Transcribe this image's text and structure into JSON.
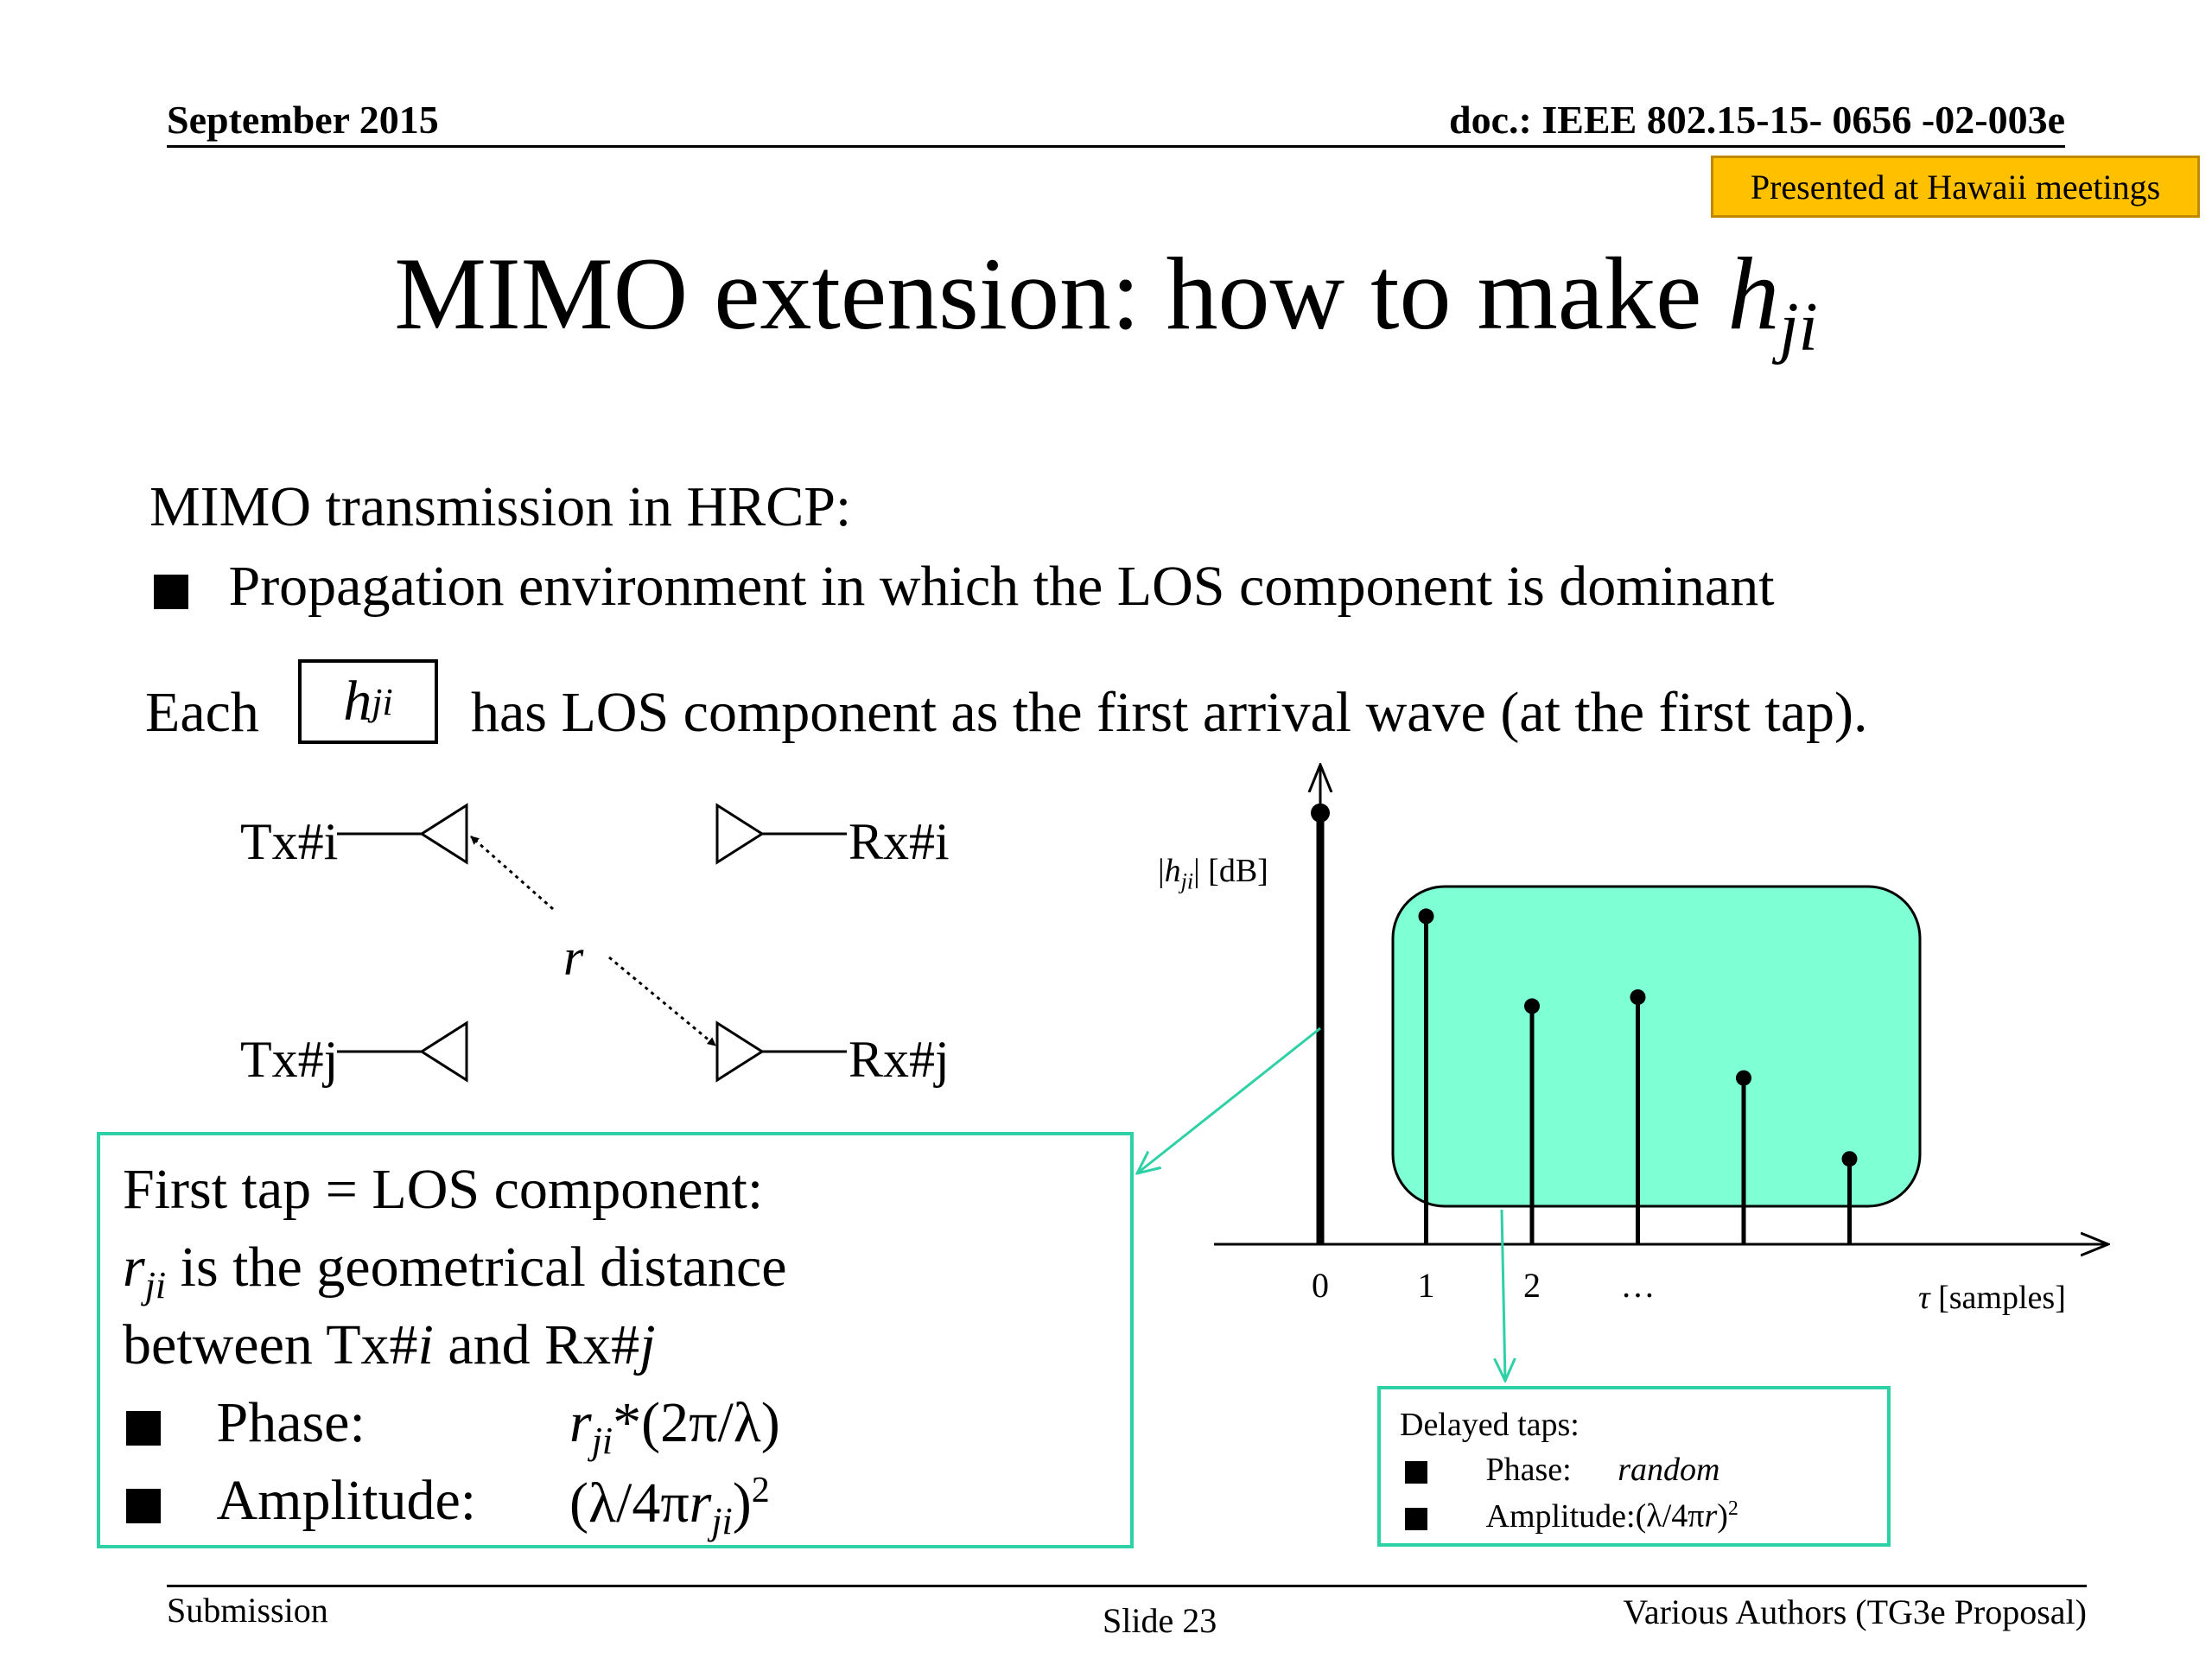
{
  "header": {
    "date": "September 2015",
    "doc": "doc.: IEEE 802.15-15- 0656 -02-003e"
  },
  "badge": "Presented at Hawaii meetings",
  "title": {
    "main": "MIMO extension: how to make ",
    "var": "h",
    "sub": "ji"
  },
  "intro": {
    "heading": "MIMO transmission in HRCP:",
    "bullet": "Propagation environment in which the LOS component is dominant",
    "each": "Each",
    "h_var": "h",
    "h_sub": "ji",
    "rest": "has LOS component as the first arrival wave (at the first tap)."
  },
  "antennas": {
    "tx_i": "Tx#i",
    "tx_j": "Tx#j",
    "rx_i": "Rx#i",
    "rx_j": "Rx#j",
    "r": "r"
  },
  "los_box": {
    "line1": "First tap = LOS component:",
    "line2_var": "r",
    "line2_sub": "ji",
    "line2_rest": " is the geometrical distance",
    "line3_a": "between Tx#",
    "line3_i": "i",
    "line3_b": " and Rx#",
    "line3_j": "j",
    "phase_label": "Phase:",
    "phase_var": "r",
    "phase_sub": "ji",
    "phase_rest": "*(2π/λ)",
    "amp_label": "Amplitude:",
    "amp_open": "(λ/4π",
    "amp_var": "r",
    "amp_sub": "ji",
    "amp_close": ")",
    "amp_sup": "2"
  },
  "chart_data": {
    "type": "stem",
    "ylabel_pre": "|",
    "ylabel_var": "h",
    "ylabel_sub": "ji",
    "ylabel_post": "| [dB]",
    "xlabel_var": "τ",
    "xlabel_rest": " [samples]",
    "x_tick_labels": [
      "0",
      "1",
      "2",
      "…"
    ],
    "taps": [
      {
        "x": 0,
        "level": 0.96
      },
      {
        "x": 1,
        "level": 0.73
      },
      {
        "x": 2,
        "level": 0.53
      },
      {
        "x": 3,
        "level": 0.55
      },
      {
        "x": 4,
        "level": 0.37
      },
      {
        "x": 5,
        "level": 0.19
      }
    ],
    "region_color": "#7fffd4",
    "arrow_color": "#2ed1a6"
  },
  "delay_box": {
    "title": "Delayed taps:",
    "phase_label": "Phase:",
    "phase_val": "random",
    "amp_label": "Amplitude:",
    "amp_open": "(λ/4π",
    "amp_var": "r",
    "amp_close": ")",
    "amp_sup": "2"
  },
  "footer": {
    "left": "Submission",
    "center": "Slide 23",
    "right": "Various Authors (TG3e Proposal)"
  }
}
